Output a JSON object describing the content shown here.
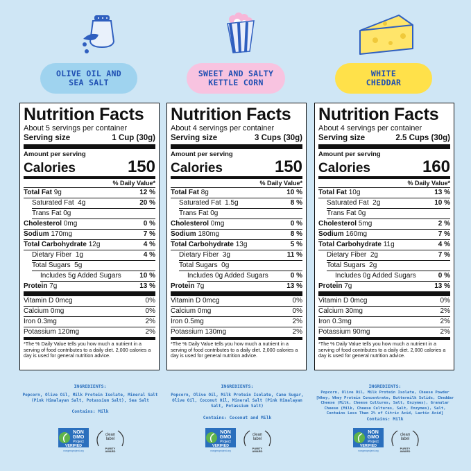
{
  "colors": {
    "background": "#cfe6f5",
    "pill_blue": "#9fd3ef",
    "pill_pink": "#f8c3e0",
    "pill_yellow": "#ffe14a",
    "text_blue": "#1f4fb2",
    "ingredients_blue": "#2a6fbd"
  },
  "products": [
    {
      "flavor": "OLIVE OIL AND\nSEA SALT",
      "icon": "salt-shaker-icon",
      "title": "Nutrition Facts",
      "servings": "About 5 servings per container",
      "serving_size_label": "Serving size",
      "serving_size": "1 Cup (30g)",
      "amount_per": "Amount per serving",
      "calories_label": "Calories",
      "calories": "150",
      "dv_header": "% Daily Value*",
      "rows": [
        {
          "label": "Total Fat",
          "amt": "9g",
          "dv": "12 %"
        },
        {
          "label": "Saturated Fat",
          "amt": "4g",
          "dv": "20 %"
        },
        {
          "label": "Trans Fat",
          "amt": "0g",
          "dv": ""
        },
        {
          "label": "Cholesterol",
          "amt": "0mg",
          "dv": "0 %"
        },
        {
          "label": "Sodium",
          "amt": "170mg",
          "dv": "7 %"
        },
        {
          "label": "Total Carbohydrate",
          "amt": "12g",
          "dv": "4 %"
        },
        {
          "label": "Dietary Fiber",
          "amt": "1g",
          "dv": "4 %"
        },
        {
          "label": "Total Sugars",
          "amt": "5g",
          "dv": ""
        },
        {
          "label": "Includes 5g Added Sugars",
          "amt": "",
          "dv": "10 %"
        },
        {
          "label": "Protein",
          "amt": "7g",
          "dv": "13 %"
        }
      ],
      "vitamins": [
        {
          "label": "Vitamin D 0mcg",
          "dv": "0%"
        },
        {
          "label": "Calcium 0mg",
          "dv": "0%"
        },
        {
          "label": "Iron 0.3mg",
          "dv": "2%"
        },
        {
          "label": "Potassium 120mg",
          "dv": "2%"
        }
      ],
      "footnote": "*The % Daily Value tells you how much a nutrient in a serving of food contributes to a daily diet. 2,000 calories a day is used for general nutrition advice.",
      "ingredients_heading": "INGREDIENTS:",
      "ingredients": "Popcorn, Olive Oil, Milk Protein Isolate, Mineral Salt (Pink Himalayan Salt, Potassium Salt), Sea Salt",
      "contains": "Contains: Milk",
      "nongmo": {
        "line1": "NON",
        "line2": "GMO",
        "line3": "Project",
        "line4": "VERIFIED",
        "url": "nongmoproject.org"
      },
      "cleanlabel": {
        "line1": "clean",
        "line2": "label",
        "line3": "PURITY",
        "line4": "AWARD"
      }
    },
    {
      "flavor": "SWEET AND SALTY\nKETTLE CORN",
      "icon": "popcorn-bag-icon",
      "title": "Nutrition Facts",
      "servings": "About 4 servings per container",
      "serving_size_label": "Serving size",
      "serving_size": "3 Cups (30g)",
      "amount_per": "Amount per serving",
      "calories_label": "Calories",
      "calories": "150",
      "dv_header": "% Daily Value*",
      "rows": [
        {
          "label": "Total Fat",
          "amt": "8g",
          "dv": "10 %"
        },
        {
          "label": "Saturated Fat",
          "amt": "1.5g",
          "dv": "8 %"
        },
        {
          "label": "Trans Fat",
          "amt": "0g",
          "dv": ""
        },
        {
          "label": "Cholesterol",
          "amt": "0mg",
          "dv": "0 %"
        },
        {
          "label": "Sodium",
          "amt": "180mg",
          "dv": "8 %"
        },
        {
          "label": "Total Carbohydrate",
          "amt": "13g",
          "dv": "5 %"
        },
        {
          "label": "Dietary Fiber",
          "amt": "3g",
          "dv": "11 %"
        },
        {
          "label": "Total Sugars",
          "amt": "0g",
          "dv": ""
        },
        {
          "label": "Includes 0g Added Sugars",
          "amt": "",
          "dv": "0 %"
        },
        {
          "label": "Protein",
          "amt": "7g",
          "dv": "13 %"
        }
      ],
      "vitamins": [
        {
          "label": "Vitamin D 0mcg",
          "dv": "0%"
        },
        {
          "label": "Calcium 0mg",
          "dv": "0%"
        },
        {
          "label": "Iron 0.5mg",
          "dv": "2%"
        },
        {
          "label": "Potassium 130mg",
          "dv": "2%"
        }
      ],
      "footnote": "*The % Daily Value tells you how much a nutrient in a serving of food contributes to a daily diet. 2,000 calories a day is used for general nutrition advice.",
      "ingredients_heading": "INGREDIENTS:",
      "ingredients": "Popcorn, Olive Oil, Milk Protein Isolate, Cane Sugar, Olive Oil, Coconut Oil, Mineral Salt (Pink Himalayan Salt, Potassium Salt)",
      "contains": "Contains: Coconut and Milk",
      "nongmo": {
        "line1": "NON",
        "line2": "GMO",
        "line3": "Project",
        "line4": "VERIFIED",
        "url": "nongmoproject.org"
      },
      "cleanlabel": {
        "line1": "clean",
        "line2": "label",
        "line3": "PURITY",
        "line4": "AWARD"
      }
    },
    {
      "flavor": "WHITE\nCHEDDAR",
      "icon": "cheese-wedge-icon",
      "title": "Nutrition Facts",
      "servings": "About 4 servings per container",
      "serving_size_label": "Serving size",
      "serving_size": "2.5 Cups (30g)",
      "amount_per": "Amount per serving",
      "calories_label": "Calories",
      "calories": "160",
      "dv_header": "% Daily Value*",
      "rows": [
        {
          "label": "Total Fat",
          "amt": "10g",
          "dv": "13 %"
        },
        {
          "label": "Saturated Fat",
          "amt": "2g",
          "dv": "10 %"
        },
        {
          "label": "Trans Fat",
          "amt": "0g",
          "dv": ""
        },
        {
          "label": "Cholesterol",
          "amt": "5mg",
          "dv": "2 %"
        },
        {
          "label": "Sodium",
          "amt": "160mg",
          "dv": "7 %"
        },
        {
          "label": "Total Carbohydrate",
          "amt": "11g",
          "dv": "4 %"
        },
        {
          "label": "Dietary Fiber",
          "amt": "2g",
          "dv": "7 %"
        },
        {
          "label": "Total Sugars",
          "amt": "2g",
          "dv": ""
        },
        {
          "label": "Includes 0g Added Sugars",
          "amt": "",
          "dv": "0 %"
        },
        {
          "label": "Protein",
          "amt": "7g",
          "dv": "13 %"
        }
      ],
      "vitamins": [
        {
          "label": "Vitamin D 0mcg",
          "dv": "0%"
        },
        {
          "label": "Calcium 30mg",
          "dv": "2%"
        },
        {
          "label": "Iron 0.3mg",
          "dv": "2%"
        },
        {
          "label": "Potassium 90mg",
          "dv": "2%"
        }
      ],
      "footnote": "*The % Daily Value tells you how much a nutrient in a serving of food contributes to a daily diet. 2,000 calories a day is used for general nutrition advice.",
      "ingredients_heading": "INGREDIENTS:",
      "ingredients": "Popcorn, Olive Oil, Milk Protein Isolate, Cheese Powder [Whey, Whey Protein Concentrate, Buttermilk Solids, Cheddar Cheese (Milk, Cheese Cultures, Salt, Enzymes), Granular Cheese (Milk, Cheese Cultures, Salt, Enzymes), Salt, Contains Less Than 2% of Citric Acid, Lactic Acid]",
      "contains": "Contains: Milk",
      "nongmo": {
        "line1": "NON",
        "line2": "GMO",
        "line3": "Project",
        "line4": "VERIFIED",
        "url": "nongmoproject.org"
      },
      "cleanlabel": {
        "line1": "clean",
        "line2": "label",
        "line3": "PURITY",
        "line4": "AWARD"
      }
    }
  ]
}
